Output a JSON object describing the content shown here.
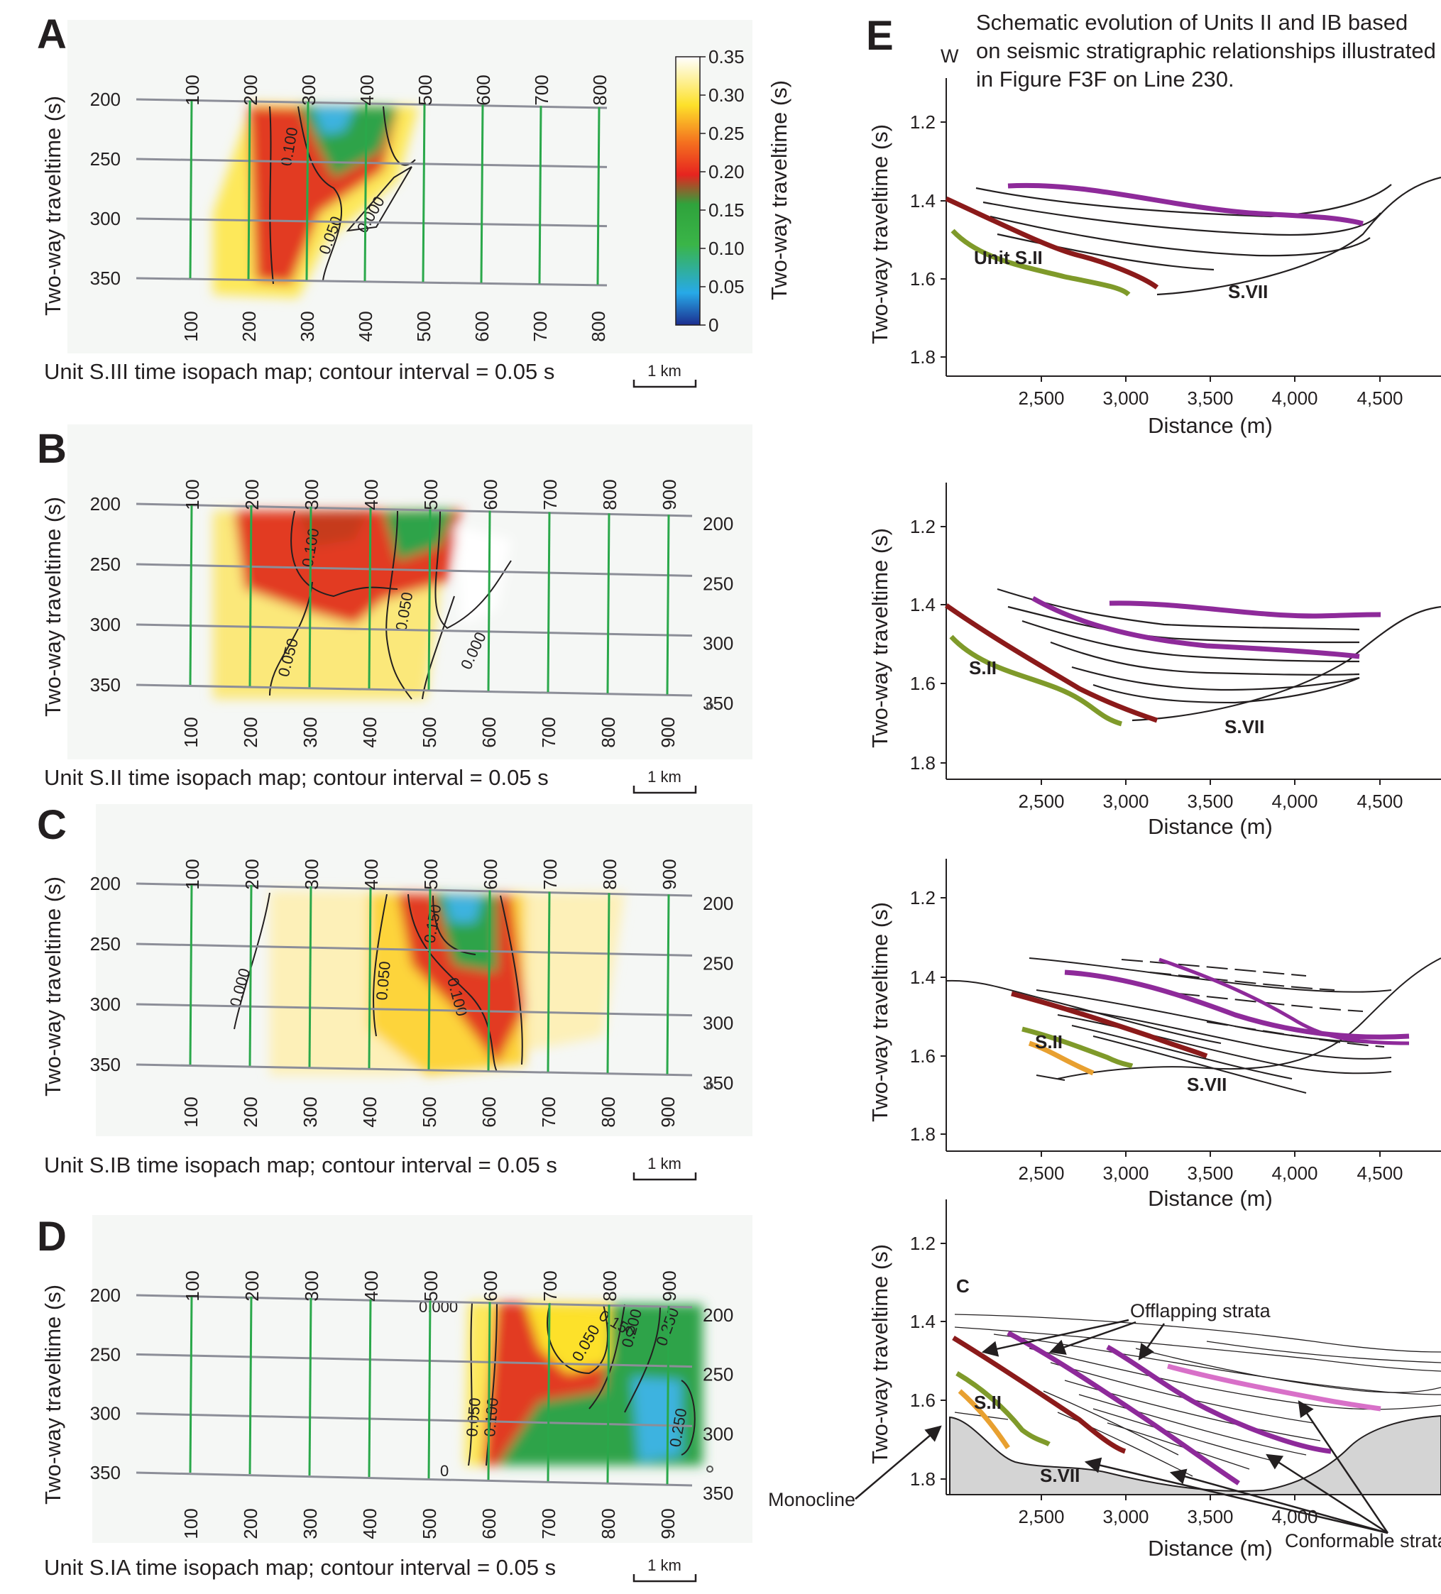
{
  "colors": {
    "grid_gray": "#8c8e98",
    "grid_green": "#2aa84a",
    "maroon": "#8b1a1a",
    "olive": "#7f9a2a",
    "purple": "#8e2a9a",
    "pink": "#d870c8",
    "orange": "#e8a030",
    "basement": "#d4d4d4"
  },
  "icons": [
    "scale-bar-icon",
    "arrow-icon",
    "map-edge-marker-icon"
  ],
  "colorbar": {
    "ticks": [
      "0.35",
      "0.30",
      "0.25",
      "0.20",
      "0.15",
      "0.10",
      "0.05",
      "0"
    ],
    "label": "Two-way traveltime (s)"
  },
  "maps": [
    {
      "letter": "A",
      "ylabel": "Two-way traveltime (s)",
      "y_ticks": [
        "200",
        "250",
        "300",
        "350"
      ],
      "right_ticks": [],
      "top_ticks": [
        "100",
        "200",
        "300",
        "400",
        "500",
        "600",
        "700",
        "800"
      ],
      "bottom_ticks": [
        "100",
        "200",
        "300",
        "400",
        "500",
        "600",
        "700",
        "800"
      ],
      "contours": [
        "0.100",
        "0.050",
        "0.000"
      ],
      "caption": "Unit S.III time isopach map; contour interval = 0.05 s",
      "scale": "1 km"
    },
    {
      "letter": "B",
      "ylabel": "Two-way traveltime (s)",
      "y_ticks": [
        "200",
        "250",
        "300",
        "350"
      ],
      "right_ticks": [
        "200",
        "250",
        "300",
        "350"
      ],
      "top_ticks": [
        "100",
        "200",
        "300",
        "400",
        "500",
        "600",
        "700",
        "800",
        "900"
      ],
      "bottom_ticks": [
        "100",
        "200",
        "300",
        "400",
        "500",
        "600",
        "700",
        "800",
        "900"
      ],
      "contours": [
        "0.100",
        "0.050",
        "0.050",
        "0.000"
      ],
      "caption": "Unit S.II time isopach map; contour interval = 0.05 s",
      "scale": "1 km"
    },
    {
      "letter": "C",
      "ylabel": "Two-way traveltime (s)",
      "y_ticks": [
        "200",
        "250",
        "300",
        "350"
      ],
      "right_ticks": [
        "200",
        "250",
        "300",
        "350"
      ],
      "top_ticks": [
        "100",
        "200",
        "300",
        "400",
        "500",
        "600",
        "700",
        "800",
        "900"
      ],
      "bottom_ticks": [
        "100",
        "200",
        "300",
        "400",
        "500",
        "600",
        "700",
        "800",
        "900"
      ],
      "contours": [
        "0.000",
        "0.050",
        "0.150",
        "0.100"
      ],
      "caption": "Unit S.IB time isopach map; contour interval = 0.05 s",
      "scale": "1 km"
    },
    {
      "letter": "D",
      "ylabel": "Two-way traveltime (s)",
      "y_ticks": [
        "200",
        "250",
        "300",
        "350"
      ],
      "right_ticks": [
        "200",
        "250",
        "300",
        "350"
      ],
      "top_ticks": [
        "100",
        "200",
        "300",
        "400",
        "500",
        "600",
        "700",
        "800",
        "900"
      ],
      "bottom_ticks": [
        "100",
        "200",
        "300",
        "400",
        "500",
        "600",
        "700",
        "800",
        "900"
      ],
      "contours": [
        "0.000",
        "0.150",
        "0.200",
        "0.250",
        "0.050",
        "0.050",
        "0.100",
        "0.250",
        "0"
      ],
      "caption": "Unit S.IA time isopach map; contour interval = 0.05 s",
      "scale": "1 km"
    }
  ],
  "panel_e": {
    "letter": "E",
    "direction": "W",
    "title_lines": [
      "Schematic evolution of Units II and IB based",
      "on seismic stratigraphic relationships illustrated",
      "in Figure F3F on Line 230."
    ],
    "ylabel": "Two-way traveltime (s)",
    "xlabel": "Distance (m)",
    "y_ticks": [
      "1.2",
      "1.4",
      "1.6",
      "1.8"
    ],
    "x_ticks": [
      "2,500",
      "3,000",
      "3,500",
      "4,000",
      "4,500"
    ],
    "x_ticks_last": [
      "2,500",
      "3,000",
      "3,500",
      "4,000"
    ],
    "sections": [
      {
        "unit_label": "Unit S.II",
        "basement_label": "S.VII"
      },
      {
        "unit_label": "S.II",
        "basement_label": "S.VII"
      },
      {
        "unit_label": "S.II",
        "basement_label": "S.VII"
      },
      {
        "unit_label": "S.II",
        "basement_label": "S.VII",
        "corner_label": "C",
        "offlap_label": "Offlapping strata",
        "conformable_label": "Conformable strata",
        "monocline_label": "Monocline"
      }
    ]
  }
}
